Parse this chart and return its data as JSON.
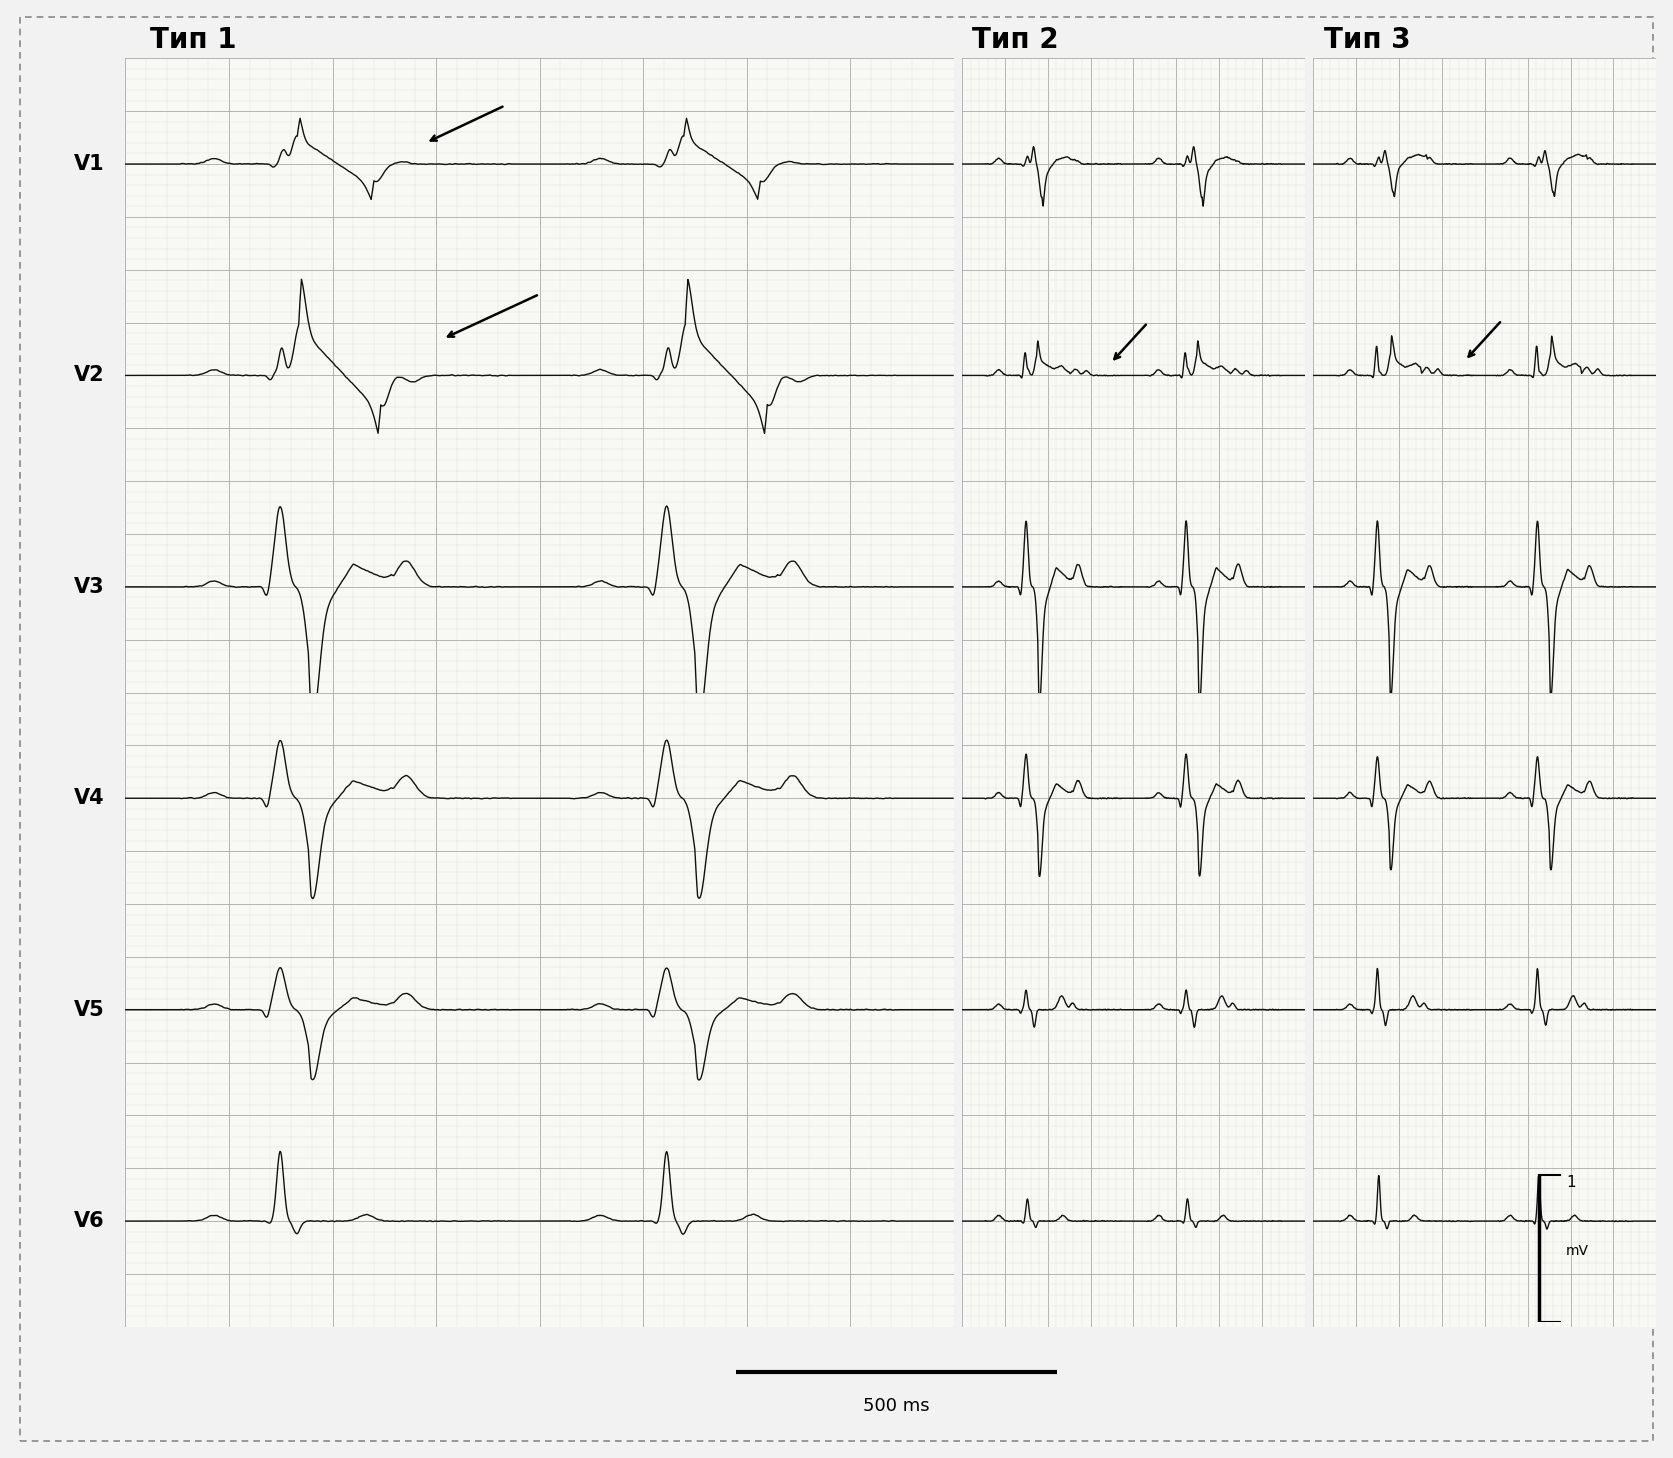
{
  "background_color": "#f2f2f2",
  "panel_bg": "#f8f8f5",
  "grid_major_color": "#aaaaaa",
  "grid_minor_color": "#d8d8d8",
  "ecg_color": "#111111",
  "border_color": "#666666",
  "type_labels": [
    "Тип 1",
    "Тип 2",
    "Тип 3"
  ],
  "lead_labels": [
    "V1",
    "V2",
    "V3",
    "V4",
    "V5",
    "V6"
  ],
  "font_size_type": 20,
  "font_size_lead": 15,
  "font_size_scale": 13
}
